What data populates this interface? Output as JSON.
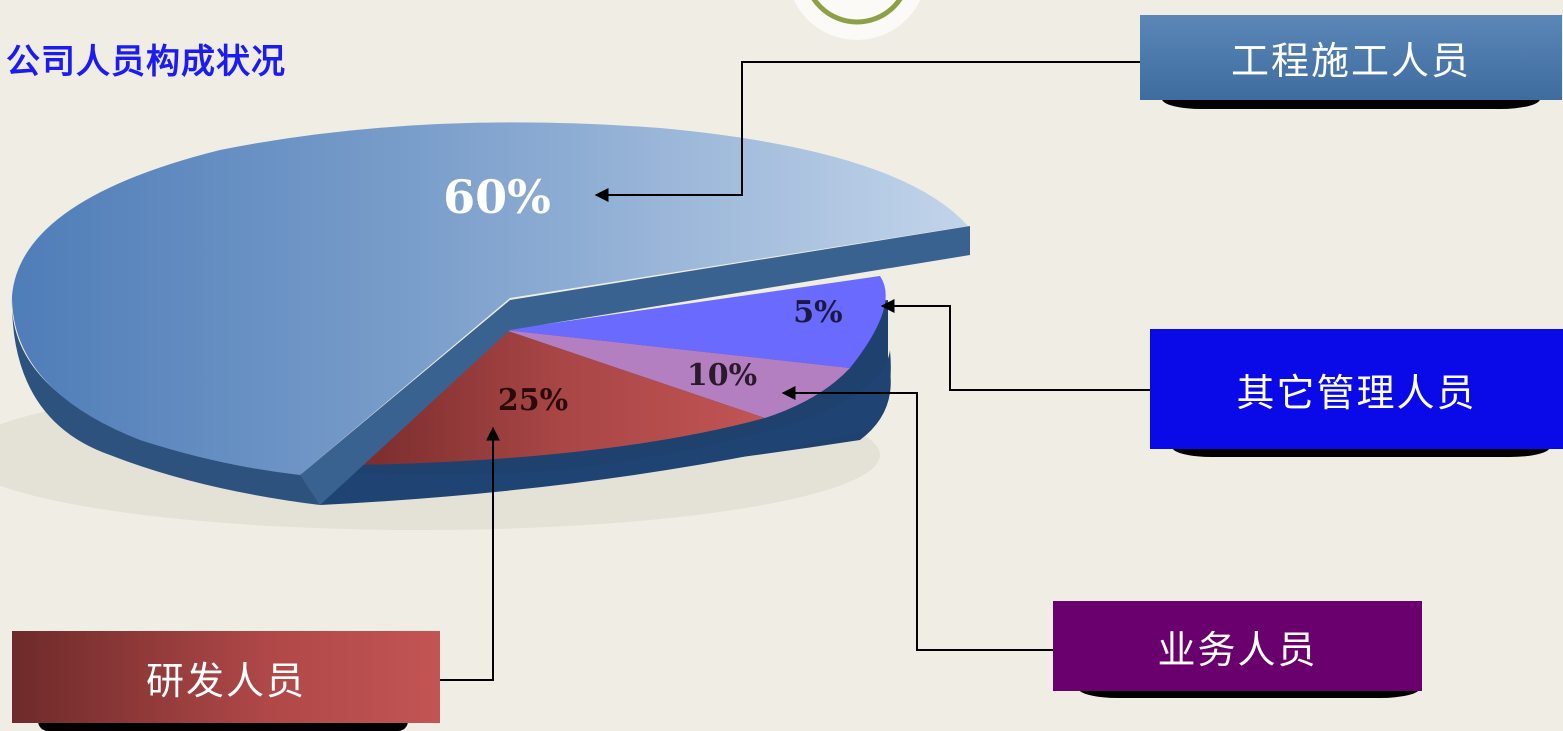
{
  "title": "公司人员构成状况",
  "colors": {
    "background": "#efede4",
    "title": "#1c1cf2",
    "line": "#000000"
  },
  "chart_data": {
    "type": "pie",
    "title": "公司人员构成状况",
    "slices": [
      {
        "name": "工程施工人员",
        "value": 60,
        "label": "60%",
        "color": "#6e97c8"
      },
      {
        "name": "其它管理人员",
        "value": 5,
        "label": "5%",
        "color": "#6a6aff"
      },
      {
        "name": "业务人员",
        "value": 10,
        "label": "10%",
        "color": "#b47fc0"
      },
      {
        "name": "研发人员",
        "value": 25,
        "label": "25%",
        "color": "#bf4f4f"
      }
    ],
    "legend_placement": "callouts"
  },
  "legend": [
    {
      "label": "工程施工人员",
      "color": "#4a78aa"
    },
    {
      "label": "其它管理人员",
      "color": "#0a0ae8"
    },
    {
      "label": "业务人员",
      "color": "#6a006e"
    },
    {
      "label": "研发人员",
      "color": "#a54444"
    }
  ]
}
